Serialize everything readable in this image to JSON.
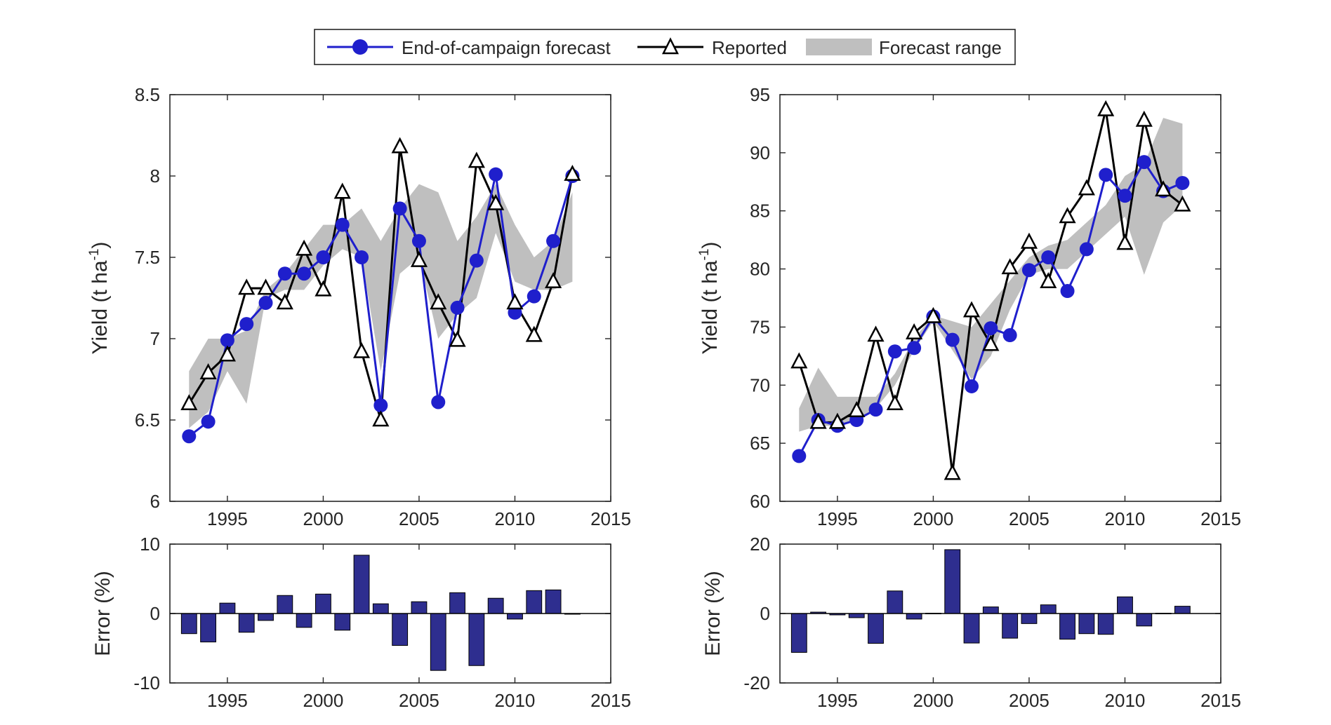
{
  "legend": {
    "placement": "top-center",
    "entries": [
      {
        "label": "End-of-campaign forecast",
        "color": "#1f1fcc",
        "marker": "filled-circle"
      },
      {
        "label": "Reported",
        "color": "#000000",
        "marker": "open-triangle"
      },
      {
        "label": "Forecast range",
        "color": "#bfbfbf",
        "marker": "patch"
      }
    ]
  },
  "chart_data": [
    {
      "type": "line",
      "panel": "left-top",
      "ylabel_main": "Yield (t ha",
      "ylabel_sup": "-1",
      "ylabel_close": ")",
      "xlim": [
        1992,
        2015
      ],
      "ylim": [
        6,
        8.5
      ],
      "xticks": [
        "1995",
        "2000",
        "2005",
        "2010",
        "2015"
      ],
      "yticks": [
        "6",
        "6.5",
        "7",
        "7.5",
        "8",
        "8.5"
      ],
      "x": [
        1993,
        1994,
        1995,
        1996,
        1997,
        1998,
        1999,
        2000,
        2001,
        2002,
        2003,
        2004,
        2005,
        2006,
        2007,
        2008,
        2009,
        2010,
        2011,
        2012,
        2013
      ],
      "series": [
        {
          "name": "End-of-campaign forecast",
          "values": [
            6.4,
            6.49,
            6.99,
            7.09,
            7.22,
            7.4,
            7.4,
            7.5,
            7.7,
            7.5,
            6.59,
            7.8,
            7.6,
            6.61,
            7.19,
            7.48,
            8.01,
            7.16,
            7.26,
            7.6,
            8.0
          ]
        },
        {
          "name": "Reported",
          "values": [
            6.6,
            6.79,
            6.9,
            7.31,
            7.31,
            7.22,
            7.55,
            7.3,
            7.9,
            6.92,
            6.5,
            8.18,
            7.48,
            7.22,
            6.99,
            8.09,
            7.83,
            7.22,
            7.02,
            7.35,
            8.01
          ]
        }
      ],
      "range_lower": [
        6.45,
        6.55,
        6.8,
        6.6,
        7.25,
        7.3,
        7.3,
        7.45,
        7.55,
        7.5,
        6.8,
        7.4,
        7.5,
        7.0,
        7.15,
        7.25,
        7.65,
        7.35,
        7.3,
        7.3,
        7.35
      ],
      "range_upper": [
        6.8,
        7.0,
        7.0,
        7.05,
        7.3,
        7.4,
        7.55,
        7.7,
        7.7,
        7.8,
        7.6,
        7.8,
        7.95,
        7.9,
        7.6,
        7.75,
        7.95,
        7.7,
        7.5,
        7.6,
        7.9
      ]
    },
    {
      "type": "bar",
      "panel": "left-bottom",
      "ylabel": "Error (%)",
      "xlim": [
        1992,
        2015
      ],
      "ylim": [
        -10,
        10
      ],
      "xticks": [
        "1995",
        "2000",
        "2005",
        "2010",
        "2015"
      ],
      "yticks": [
        "-10",
        "0",
        "10"
      ],
      "x": [
        1993,
        1994,
        1995,
        1996,
        1997,
        1998,
        1999,
        2000,
        2001,
        2002,
        2003,
        2004,
        2005,
        2006,
        2007,
        2008,
        2009,
        2010,
        2011,
        2012,
        2013
      ],
      "values": [
        -2.9,
        -4.1,
        1.5,
        -2.7,
        -1.0,
        2.6,
        -2.0,
        2.8,
        -2.4,
        8.4,
        1.4,
        -4.6,
        1.7,
        -8.2,
        3.0,
        -7.5,
        2.2,
        -0.8,
        3.3,
        3.4,
        -0.1
      ],
      "bar_color": "#2e2e8f"
    },
    {
      "type": "line",
      "panel": "right-top",
      "ylabel_main": "Yield (t ha",
      "ylabel_sup": "-1",
      "ylabel_close": ")",
      "xlim": [
        1992,
        2015
      ],
      "ylim": [
        60,
        95
      ],
      "xticks": [
        "1995",
        "2000",
        "2005",
        "2010",
        "2015"
      ],
      "yticks": [
        "60",
        "65",
        "70",
        "75",
        "80",
        "85",
        "90",
        "95"
      ],
      "x": [
        1993,
        1994,
        1995,
        1996,
        1997,
        1998,
        1999,
        2000,
        2001,
        2002,
        2003,
        2004,
        2005,
        2006,
        2007,
        2008,
        2009,
        2010,
        2011,
        2012,
        2013
      ],
      "series": [
        {
          "name": "End-of-campaign forecast",
          "values": [
            63.9,
            67.0,
            66.5,
            67.0,
            67.9,
            72.9,
            73.2,
            75.9,
            73.9,
            69.9,
            74.9,
            74.3,
            79.9,
            81.0,
            78.1,
            81.7,
            88.1,
            86.3,
            89.2,
            86.7,
            87.4
          ]
        },
        {
          "name": "Reported",
          "values": [
            72.0,
            66.8,
            66.8,
            67.8,
            74.3,
            68.4,
            74.5,
            75.9,
            62.4,
            76.4,
            73.5,
            80.1,
            82.3,
            78.9,
            84.5,
            86.9,
            93.7,
            82.2,
            92.8,
            86.8,
            85.5
          ]
        }
      ],
      "range_lower": [
        66.0,
        66.5,
        66.5,
        67.0,
        68.0,
        70.0,
        73.0,
        75.5,
        73.0,
        70.5,
        72.5,
        76.5,
        79.5,
        80.0,
        80.0,
        81.5,
        83.0,
        84.5,
        79.5,
        84.0,
        85.5
      ],
      "range_upper": [
        68.0,
        71.5,
        69.0,
        69.0,
        69.0,
        71.0,
        74.0,
        76.0,
        75.5,
        75.0,
        77.0,
        79.0,
        81.0,
        82.0,
        82.5,
        84.0,
        85.5,
        88.0,
        89.0,
        93.0,
        92.5
      ]
    },
    {
      "type": "bar",
      "panel": "right-bottom",
      "ylabel": "Error (%)",
      "xlim": [
        1992,
        2015
      ],
      "ylim": [
        -20,
        20
      ],
      "xticks": [
        "1995",
        "2000",
        "2005",
        "2010",
        "2015"
      ],
      "yticks": [
        "-20",
        "0",
        "20"
      ],
      "x": [
        1993,
        1994,
        1995,
        1996,
        1997,
        1998,
        1999,
        2000,
        2001,
        2002,
        2003,
        2004,
        2005,
        2006,
        2007,
        2008,
        2009,
        2010,
        2011,
        2012,
        2013
      ],
      "values": [
        -11.2,
        0.4,
        -0.4,
        -1.2,
        -8.6,
        6.5,
        -1.6,
        0.1,
        18.4,
        -8.5,
        1.9,
        -7.1,
        -2.9,
        2.5,
        -7.4,
        -5.8,
        -6.0,
        4.8,
        -3.6,
        0.1,
        2.1
      ],
      "bar_color": "#2e2e8f"
    }
  ]
}
